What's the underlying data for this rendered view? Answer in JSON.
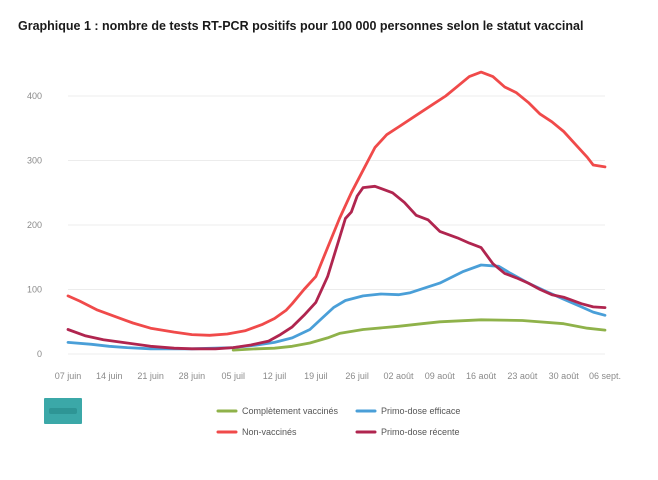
{
  "title": "Graphique 1 : nombre de tests RT-PCR positifs pour 100 000 personnes selon le statut vaccinal",
  "chart_data": {
    "type": "line",
    "title": "Graphique 1 : nombre de tests RT-PCR positifs pour 100 000 personnes selon le statut vaccinal",
    "xlabel": "",
    "ylabel": "",
    "ylim": [
      0,
      450
    ],
    "y_ticks": [
      0,
      100,
      200,
      300,
      400
    ],
    "x_ticks": [
      "07 juin",
      "14 juin",
      "21 juin",
      "28 juin",
      "05 juil",
      "12 juil",
      "19 juil",
      "26 juil",
      "02 août",
      "09 août",
      "16 août",
      "23 août",
      "30 août",
      "06 sept."
    ],
    "x": [
      0,
      7,
      14,
      21,
      28,
      35,
      42,
      49,
      56,
      63,
      70,
      77,
      84,
      91
    ],
    "grid": true,
    "legend_position": "bottom",
    "series": [
      {
        "name": "Complètement vaccinés",
        "color": "#8fb24a",
        "values": [
          null,
          null,
          null,
          null,
          null,
          null,
          null,
          null,
          null,
          null,
          null,
          null,
          null,
          null
        ],
        "points": [
          [
            28,
            6
          ],
          [
            32,
            8
          ],
          [
            35,
            9
          ],
          [
            38,
            12
          ],
          [
            41,
            17
          ],
          [
            44,
            25
          ],
          [
            46,
            32
          ],
          [
            50,
            38
          ],
          [
            56,
            43
          ],
          [
            60,
            47
          ],
          [
            63,
            50
          ],
          [
            70,
            53
          ],
          [
            77,
            52
          ],
          [
            84,
            47
          ],
          [
            88,
            40
          ],
          [
            91,
            37
          ]
        ]
      },
      {
        "name": "Primo-dose efficace",
        "color": "#4a9fd8",
        "values": [
          null,
          null,
          null,
          null,
          null,
          null,
          null,
          null,
          null,
          null,
          null,
          null,
          null,
          null
        ],
        "points": [
          [
            0,
            18
          ],
          [
            4,
            15
          ],
          [
            7,
            12
          ],
          [
            10,
            10
          ],
          [
            14,
            8
          ],
          [
            21,
            8
          ],
          [
            28,
            10
          ],
          [
            32,
            14
          ],
          [
            35,
            18
          ],
          [
            38,
            25
          ],
          [
            41,
            38
          ],
          [
            43,
            55
          ],
          [
            45,
            72
          ],
          [
            47,
            83
          ],
          [
            50,
            90
          ],
          [
            53,
            93
          ],
          [
            56,
            92
          ],
          [
            58,
            95
          ],
          [
            63,
            110
          ],
          [
            67,
            128
          ],
          [
            70,
            138
          ],
          [
            73,
            136
          ],
          [
            75,
            125
          ],
          [
            78,
            110
          ],
          [
            81,
            97
          ],
          [
            84,
            85
          ],
          [
            87,
            73
          ],
          [
            89,
            65
          ],
          [
            91,
            60
          ]
        ]
      },
      {
        "name": "Non-vaccinés",
        "color": "#f04a4a",
        "values": [
          null,
          null,
          null,
          null,
          null,
          null,
          null,
          null,
          null,
          null,
          null,
          null,
          null,
          null
        ],
        "points": [
          [
            0,
            90
          ],
          [
            2,
            82
          ],
          [
            5,
            68
          ],
          [
            8,
            58
          ],
          [
            11,
            48
          ],
          [
            14,
            40
          ],
          [
            18,
            34
          ],
          [
            21,
            30
          ],
          [
            24,
            29
          ],
          [
            27,
            31
          ],
          [
            30,
            36
          ],
          [
            33,
            46
          ],
          [
            35,
            55
          ],
          [
            37,
            68
          ],
          [
            38,
            78
          ],
          [
            40,
            100
          ],
          [
            42,
            120
          ],
          [
            44,
            165
          ],
          [
            46,
            210
          ],
          [
            48,
            250
          ],
          [
            50,
            285
          ],
          [
            52,
            320
          ],
          [
            54,
            340
          ],
          [
            56,
            352
          ],
          [
            59,
            370
          ],
          [
            62,
            388
          ],
          [
            64,
            400
          ],
          [
            66,
            415
          ],
          [
            68,
            430
          ],
          [
            70,
            437
          ],
          [
            72,
            430
          ],
          [
            74,
            414
          ],
          [
            76,
            405
          ],
          [
            78,
            390
          ],
          [
            80,
            372
          ],
          [
            82,
            360
          ],
          [
            84,
            345
          ],
          [
            86,
            325
          ],
          [
            88,
            305
          ],
          [
            89,
            293
          ],
          [
            91,
            290
          ]
        ]
      },
      {
        "name": "Primo-dose récente",
        "color": "#b0254f",
        "values": [
          null,
          null,
          null,
          null,
          null,
          null,
          null,
          null,
          null,
          null,
          null,
          null,
          null,
          null
        ],
        "points": [
          [
            0,
            38
          ],
          [
            3,
            28
          ],
          [
            6,
            22
          ],
          [
            10,
            17
          ],
          [
            14,
            12
          ],
          [
            18,
            9
          ],
          [
            21,
            8
          ],
          [
            25,
            8
          ],
          [
            28,
            10
          ],
          [
            31,
            14
          ],
          [
            34,
            20
          ],
          [
            36,
            30
          ],
          [
            38,
            42
          ],
          [
            40,
            60
          ],
          [
            42,
            80
          ],
          [
            44,
            120
          ],
          [
            46,
            180
          ],
          [
            47,
            210
          ],
          [
            48,
            220
          ],
          [
            49,
            245
          ],
          [
            50,
            258
          ],
          [
            52,
            260
          ],
          [
            55,
            250
          ],
          [
            57,
            235
          ],
          [
            59,
            215
          ],
          [
            61,
            208
          ],
          [
            63,
            190
          ],
          [
            66,
            180
          ],
          [
            68,
            172
          ],
          [
            70,
            165
          ],
          [
            72,
            140
          ],
          [
            74,
            125
          ],
          [
            76,
            118
          ],
          [
            78,
            110
          ],
          [
            80,
            100
          ],
          [
            82,
            92
          ],
          [
            84,
            88
          ],
          [
            87,
            78
          ],
          [
            89,
            73
          ],
          [
            91,
            72
          ]
        ]
      }
    ]
  }
}
